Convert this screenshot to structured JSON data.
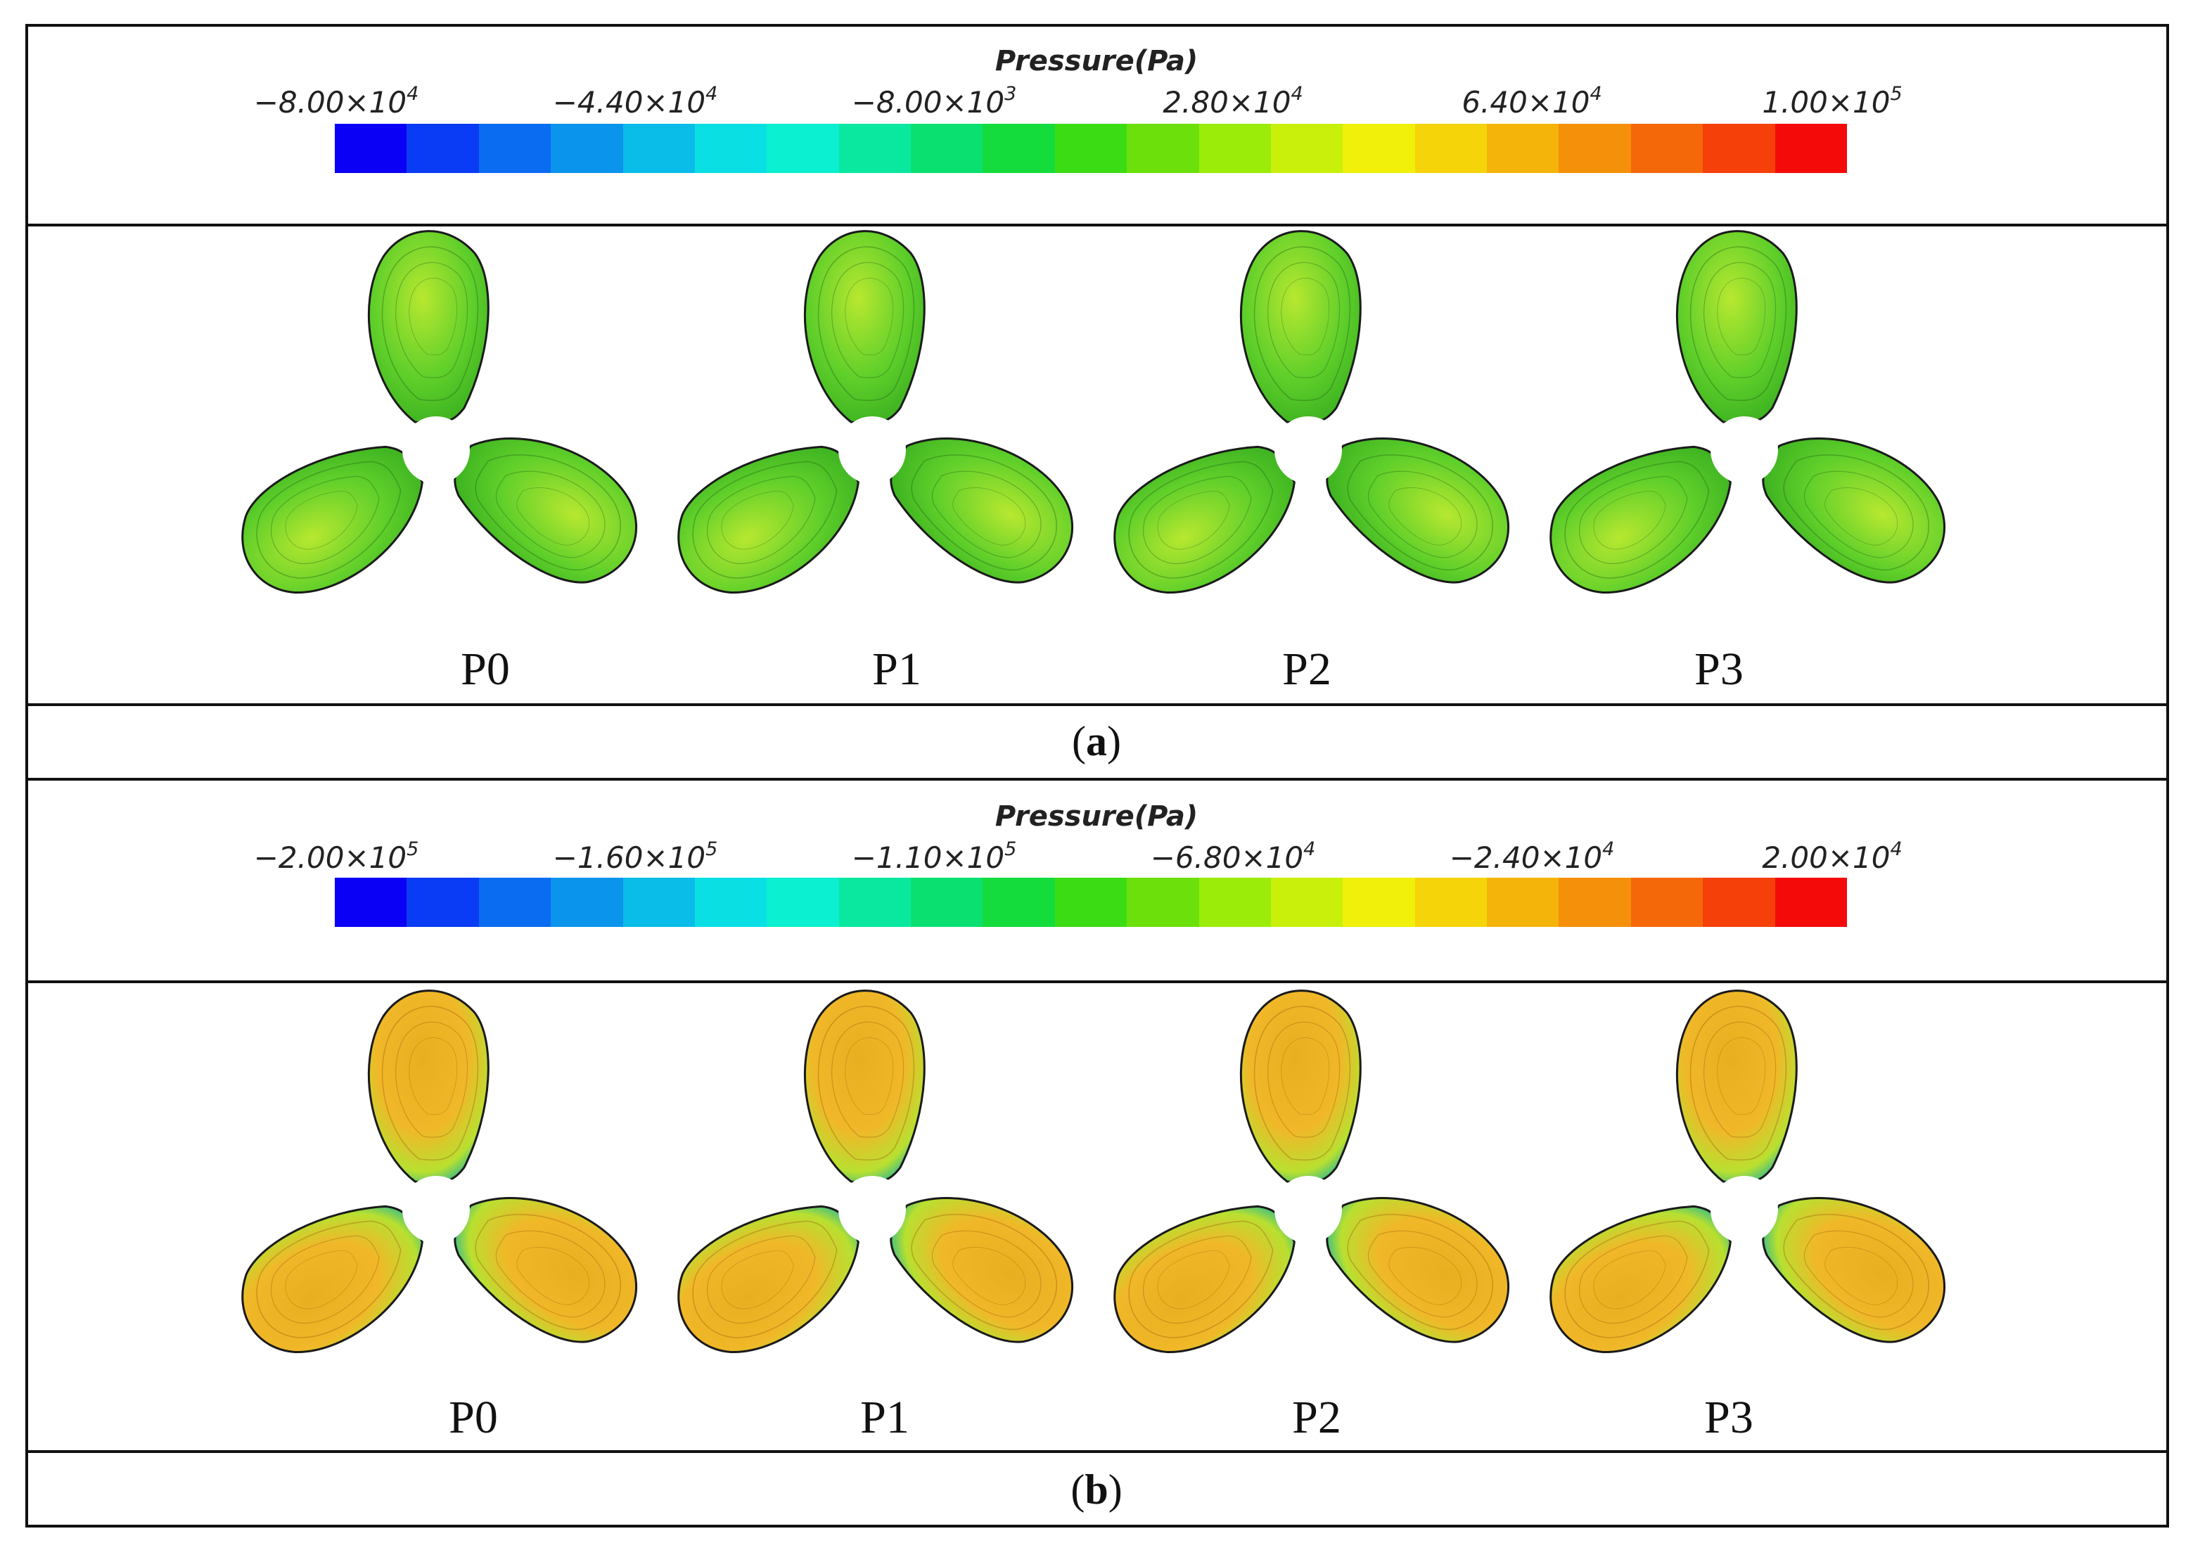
{
  "panel_a": {
    "legend_title": "Pressure(Pa)",
    "ticks": [
      {
        "mant": "−8.00×10",
        "exp": "4"
      },
      {
        "mant": "−4.40×10",
        "exp": "4"
      },
      {
        "mant": "−8.00×10",
        "exp": "3"
      },
      {
        "mant": "2.80×10",
        "exp": "4"
      },
      {
        "mant": "6.40×10",
        "exp": "4"
      },
      {
        "mant": "1.00×10",
        "exp": "5"
      }
    ],
    "propellers": [
      "P0",
      "P1",
      "P2",
      "P3"
    ],
    "caption_letter": "a"
  },
  "panel_b": {
    "legend_title": "Pressure(Pa)",
    "ticks": [
      {
        "mant": "−2.00×10",
        "exp": "5"
      },
      {
        "mant": "−1.60×10",
        "exp": "5"
      },
      {
        "mant": "−1.10×10",
        "exp": "5"
      },
      {
        "mant": "−6.80×10",
        "exp": "4"
      },
      {
        "mant": "−2.40×10",
        "exp": "4"
      },
      {
        "mant": "2.00×10",
        "exp": "4"
      }
    ],
    "propellers": [
      "P0",
      "P1",
      "P2",
      "P3"
    ],
    "caption_letter": "b"
  },
  "caption_open": "(",
  "caption_close": ")",
  "colors": {
    "colormap": [
      "#0a00f5",
      "#0a3cf5",
      "#0a6cf0",
      "#0a94ec",
      "#0abce8",
      "#0ae0e4",
      "#0af0d0",
      "#0ae8a0",
      "#0ae070",
      "#14dc3c",
      "#3cdc14",
      "#6ce00a",
      "#9cec0a",
      "#c8f00a",
      "#f0f00a",
      "#f5d40a",
      "#f5b40a",
      "#f5900a",
      "#f5680a",
      "#f5400a",
      "#f50a0a"
    ],
    "panel_a_blade_base": "#5fcf2a",
    "panel_a_blade_light": "#b8e830",
    "panel_b_blade_base": "#e8b020",
    "panel_b_blade_light": "#b8e030",
    "panel_b_blade_edge": "#2ab890",
    "blade_outline": "#1a1a1a"
  }
}
